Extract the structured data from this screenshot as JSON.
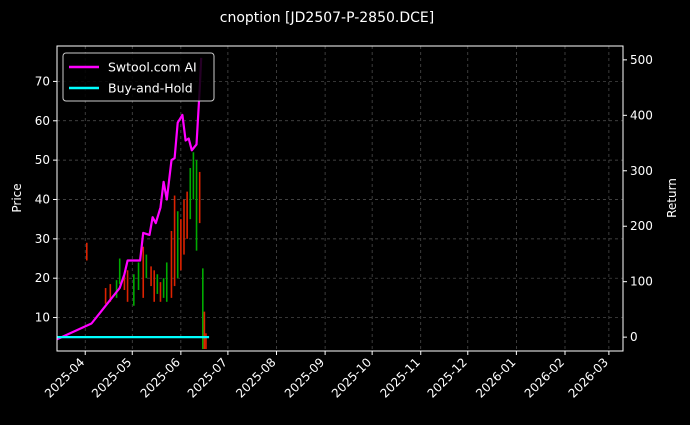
{
  "chart_data": {
    "type": "line",
    "title": "cnoption [JD2507-P-2850.DCE]",
    "ylabel_left": "Price",
    "ylabel_right": "Return",
    "ylim_left": [
      1.5,
      79
    ],
    "ylim_right": [
      -25,
      525
    ],
    "left_ticks": [
      10,
      20,
      30,
      40,
      50,
      60,
      70
    ],
    "right_ticks": [
      0,
      100,
      200,
      300,
      400,
      500
    ],
    "left_tick_labels": [
      "10",
      "20",
      "30",
      "40",
      "50",
      "60",
      "70"
    ],
    "right_tick_labels": [
      "0",
      "100",
      "200",
      "300",
      "400",
      "500"
    ],
    "x_range": [
      "2025-03-14",
      "2026-03-10"
    ],
    "x_ticks": [
      "2025-04-01",
      "2025-05-01",
      "2025-06-01",
      "2025-07-01",
      "2025-08-01",
      "2025-09-01",
      "2025-10-01",
      "2025-11-01",
      "2025-12-01",
      "2026-01-01",
      "2026-02-01",
      "2026-03-01"
    ],
    "x_tick_labels": [
      "2025-04",
      "2025-05",
      "2025-06",
      "2025-07",
      "2025-08",
      "2025-09",
      "2025-10",
      "2025-11",
      "2025-12",
      "2026-01",
      "2026-02",
      "2026-03"
    ],
    "grid": true,
    "legend_position": "top-left",
    "background": "#000000",
    "colors": {
      "strategy": "#ff00ff",
      "buyhold": "#00ffff",
      "up_candle": "#00aa00",
      "down_candle": "#dd2200",
      "grid": "#555555"
    },
    "series": [
      {
        "name": "Swtool.com AI",
        "axis": "left",
        "points": [
          [
            "2025-03-14",
            4.5
          ],
          [
            "2025-04-05",
            8.5
          ],
          [
            "2025-04-12",
            12.0
          ],
          [
            "2025-04-17",
            14.5
          ],
          [
            "2025-04-23",
            17.5
          ],
          [
            "2025-04-26",
            21.0
          ],
          [
            "2025-04-28",
            24.5
          ],
          [
            "2025-05-06",
            24.5
          ],
          [
            "2025-05-08",
            31.5
          ],
          [
            "2025-05-12",
            31.0
          ],
          [
            "2025-05-14",
            35.5
          ],
          [
            "2025-05-16",
            34.0
          ],
          [
            "2025-05-19",
            38.0
          ],
          [
            "2025-05-21",
            44.5
          ],
          [
            "2025-05-23",
            40.0
          ],
          [
            "2025-05-26",
            50.0
          ],
          [
            "2025-05-28",
            50.5
          ],
          [
            "2025-05-30",
            59.5
          ],
          [
            "2025-06-02",
            61.5
          ],
          [
            "2025-06-04",
            55.0
          ],
          [
            "2025-06-06",
            55.5
          ],
          [
            "2025-06-08",
            52.5
          ],
          [
            "2025-06-11",
            54.0
          ],
          [
            "2025-06-13",
            68.0
          ],
          [
            "2025-06-14",
            76.0
          ]
        ]
      },
      {
        "name": "Buy-and-Hold",
        "axis": "right",
        "points": [
          [
            "2025-03-14",
            0
          ],
          [
            "2025-06-19",
            0
          ]
        ]
      }
    ],
    "candles": [
      {
        "date": "2025-04-02",
        "low": 24.5,
        "high": 29.0,
        "dir": "down"
      },
      {
        "date": "2025-04-14",
        "low": 13.5,
        "high": 17.5,
        "dir": "down"
      },
      {
        "date": "2025-04-17",
        "low": 14.0,
        "high": 18.5,
        "dir": "down"
      },
      {
        "date": "2025-04-21",
        "low": 15.0,
        "high": 19.5,
        "dir": "up"
      },
      {
        "date": "2025-04-23",
        "low": 18.5,
        "high": 25.0,
        "dir": "up"
      },
      {
        "date": "2025-04-26",
        "low": 17.0,
        "high": 21.0,
        "dir": "down"
      },
      {
        "date": "2025-04-28",
        "low": 14.0,
        "high": 22.0,
        "dir": "down"
      },
      {
        "date": "2025-05-02",
        "low": 13.0,
        "high": 21.0,
        "dir": "up"
      },
      {
        "date": "2025-05-05",
        "low": 17.0,
        "high": 24.0,
        "dir": "up"
      },
      {
        "date": "2025-05-08",
        "low": 15.0,
        "high": 28.0,
        "dir": "down"
      },
      {
        "date": "2025-05-10",
        "low": 20.0,
        "high": 26.0,
        "dir": "up"
      },
      {
        "date": "2025-05-13",
        "low": 18.0,
        "high": 23.0,
        "dir": "down"
      },
      {
        "date": "2025-05-15",
        "low": 14.0,
        "high": 22.0,
        "dir": "down"
      },
      {
        "date": "2025-05-17",
        "low": 16.0,
        "high": 21.0,
        "dir": "up"
      },
      {
        "date": "2025-05-19",
        "low": 14.0,
        "high": 19.0,
        "dir": "down"
      },
      {
        "date": "2025-05-21",
        "low": 15.0,
        "high": 20.0,
        "dir": "up"
      },
      {
        "date": "2025-05-23",
        "low": 14.0,
        "high": 24.0,
        "dir": "up"
      },
      {
        "date": "2025-05-26",
        "low": 15.0,
        "high": 32.0,
        "dir": "down"
      },
      {
        "date": "2025-05-28",
        "low": 18.0,
        "high": 41.0,
        "dir": "down"
      },
      {
        "date": "2025-05-30",
        "low": 20.0,
        "high": 37.0,
        "dir": "up"
      },
      {
        "date": "2025-06-01",
        "low": 22.0,
        "high": 35.0,
        "dir": "down"
      },
      {
        "date": "2025-06-03",
        "low": 26.0,
        "high": 40.0,
        "dir": "down"
      },
      {
        "date": "2025-06-05",
        "low": 30.0,
        "high": 42.0,
        "dir": "down"
      },
      {
        "date": "2025-06-07",
        "low": 35.0,
        "high": 48.0,
        "dir": "up"
      },
      {
        "date": "2025-06-09",
        "low": 40.0,
        "high": 52.0,
        "dir": "up"
      },
      {
        "date": "2025-06-11",
        "low": 27.0,
        "high": 50.0,
        "dir": "up"
      },
      {
        "date": "2025-06-13",
        "low": 34.0,
        "high": 47.0,
        "dir": "down"
      },
      {
        "date": "2025-06-15",
        "low": 2.0,
        "high": 22.5,
        "dir": "up"
      },
      {
        "date": "2025-06-16",
        "low": 2.0,
        "high": 11.5,
        "dir": "down"
      },
      {
        "date": "2025-06-17",
        "low": 2.0,
        "high": 6.0,
        "dir": "down"
      }
    ]
  }
}
